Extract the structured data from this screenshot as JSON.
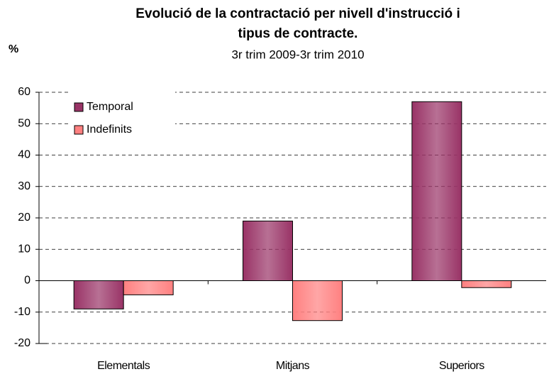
{
  "chart_data": {
    "type": "bar",
    "title": [
      "Evolució de la contractació per nivell d'instrucció i",
      "tipus de contracte."
    ],
    "subtitle": "3r trim 2009-3r trim 2010",
    "y_label": "%",
    "categories": [
      "Elementals",
      "Mitjans",
      "Superiors"
    ],
    "series": [
      {
        "name": "Temporal",
        "color": "#993366",
        "values": [
          -9,
          19,
          57
        ]
      },
      {
        "name": "Indefinits",
        "color": "#ff8080",
        "values": [
          -4.5,
          -12.7,
          -2.2
        ]
      }
    ],
    "ylim": [
      -20,
      60
    ],
    "yticks": [
      -20,
      -10,
      0,
      10,
      20,
      30,
      40,
      50,
      60
    ],
    "grid": true,
    "legend": "upper left"
  }
}
